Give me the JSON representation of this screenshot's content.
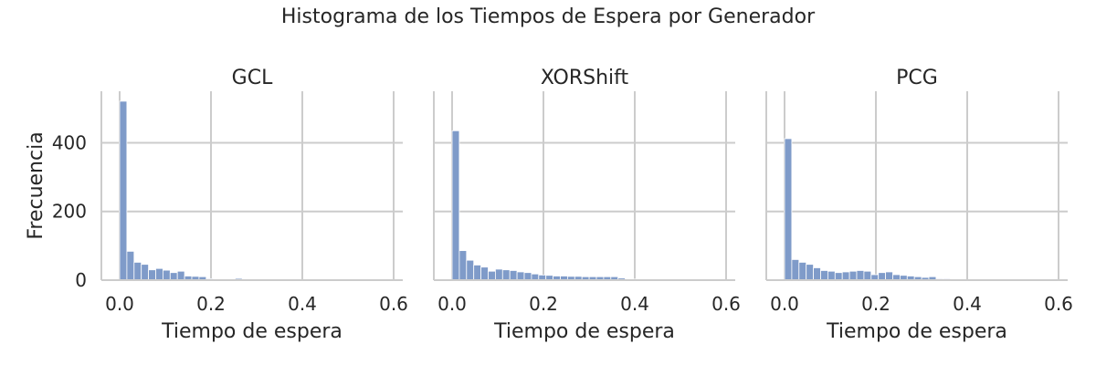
{
  "title": "Histograma de los Tiempos de Espera por Generador",
  "style": {
    "bar_color": "#7f9bc9",
    "bar_edge": "#ffffff",
    "grid_color": "#cccccc",
    "axis_color": "#cccccc",
    "text_color": "#262626"
  },
  "chart_data": [
    {
      "type": "bar",
      "panel_title": "GCL",
      "xlabel": "Tiempo de espera",
      "ylabel": "Frecuencia",
      "xlim": [
        -0.04,
        0.62
      ],
      "ylim": [
        0,
        550
      ],
      "x_ticks": [
        0.0,
        0.2,
        0.4,
        0.6
      ],
      "x_tick_labels": [
        "0.0",
        "0.2",
        "0.4",
        "0.6"
      ],
      "y_ticks": [
        0,
        200,
        400
      ],
      "y_tick_labels": [
        "0",
        "200",
        "400"
      ],
      "grid": true,
      "bin_width": 0.0158,
      "bin_start": 0.0,
      "values": [
        521,
        84,
        52,
        46,
        30,
        34,
        29,
        22,
        26,
        12,
        11,
        10,
        4,
        3,
        2,
        2,
        5,
        3,
        2,
        3,
        2,
        1,
        1,
        1,
        1,
        1,
        1,
        1,
        1,
        1,
        1,
        1,
        1,
        1,
        1,
        1,
        1,
        1
      ]
    },
    {
      "type": "bar",
      "panel_title": "XORShift",
      "xlabel": "Tiempo de espera",
      "ylabel": "",
      "xlim": [
        -0.04,
        0.62
      ],
      "ylim": [
        0,
        550
      ],
      "x_ticks": [
        0.0,
        0.2,
        0.4,
        0.6
      ],
      "x_tick_labels": [
        "0.0",
        "0.2",
        "0.4",
        "0.6"
      ],
      "y_ticks": [
        0,
        200,
        400
      ],
      "y_tick_labels": [],
      "grid": true,
      "bin_width": 0.0158,
      "bin_start": 0.0,
      "values": [
        435,
        86,
        58,
        44,
        38,
        26,
        32,
        30,
        28,
        24,
        22,
        18,
        15,
        14,
        12,
        12,
        11,
        11,
        10,
        10,
        10,
        10,
        10,
        6,
        3,
        3,
        3,
        2,
        2,
        1,
        1,
        1,
        1,
        1,
        1,
        1,
        1,
        1
      ]
    },
    {
      "type": "bar",
      "panel_title": "PCG",
      "xlabel": "Tiempo de espera",
      "ylabel": "",
      "xlim": [
        -0.04,
        0.62
      ],
      "ylim": [
        0,
        550
      ],
      "x_ticks": [
        0.0,
        0.2,
        0.4,
        0.6
      ],
      "x_tick_labels": [
        "0.0",
        "0.2",
        "0.4",
        "0.6"
      ],
      "y_ticks": [
        0,
        200,
        400
      ],
      "y_tick_labels": [],
      "grid": true,
      "bin_width": 0.0158,
      "bin_start": 0.0,
      "values": [
        412,
        60,
        52,
        46,
        36,
        28,
        26,
        22,
        24,
        26,
        28,
        26,
        16,
        22,
        24,
        16,
        14,
        12,
        10,
        8,
        10,
        4,
        4,
        2,
        1,
        1,
        1,
        1,
        1,
        1,
        1,
        1,
        1,
        1,
        1,
        1,
        1,
        1
      ]
    }
  ]
}
